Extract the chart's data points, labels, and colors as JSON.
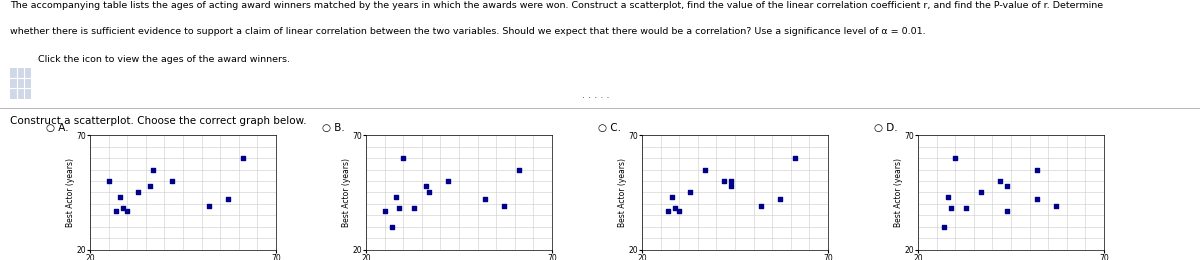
{
  "line1": "The accompanying table lists the ages of acting award winners matched by the years in which the awards were won. Construct a scatterplot, find the value of the linear correlation coefficient r, and find the P-value of r. Determine",
  "line2": "whether there is sufficient evidence to support a claim of linear correlation between the two variables. Should we expect that there would be a correlation? Use a significance level of α = 0.01.",
  "line3": "Click the icon to view the ages of the award winners.",
  "subtitle": "Construct a scatterplot. Choose the correct graph below.",
  "options": [
    "A.",
    "B.",
    "C.",
    "D."
  ],
  "xlim": [
    20,
    70
  ],
  "ylim": [
    20,
    70
  ],
  "xlabel": "Best Actress (years)",
  "ylabel": "Best Actor (years)",
  "dot_color": "#00008B",
  "dot_size": 8,
  "scatter_A": {
    "x": [
      28,
      30,
      29,
      33,
      25,
      36,
      61,
      42,
      52,
      37,
      27,
      57
    ],
    "y": [
      43,
      37,
      38,
      45,
      50,
      48,
      60,
      50,
      39,
      55,
      37,
      42
    ]
  },
  "scatter_B": {
    "x": [
      28,
      30,
      29,
      33,
      25,
      36,
      61,
      42,
      52,
      37,
      27,
      57
    ],
    "y": [
      43,
      60,
      38,
      38,
      37,
      48,
      55,
      50,
      42,
      45,
      30,
      39
    ]
  },
  "scatter_C": {
    "x": [
      28,
      30,
      29,
      33,
      44,
      44,
      61,
      42,
      52,
      37,
      27,
      57
    ],
    "y": [
      43,
      37,
      38,
      45,
      50,
      48,
      60,
      50,
      39,
      55,
      37,
      42
    ]
  },
  "scatter_D": {
    "x": [
      28,
      30,
      29,
      33,
      44,
      44,
      52,
      42,
      52,
      37,
      27,
      57
    ],
    "y": [
      43,
      60,
      38,
      38,
      37,
      48,
      55,
      50,
      42,
      45,
      30,
      39
    ]
  },
  "bg_color": "#ffffff",
  "grid_color": "#cccccc"
}
